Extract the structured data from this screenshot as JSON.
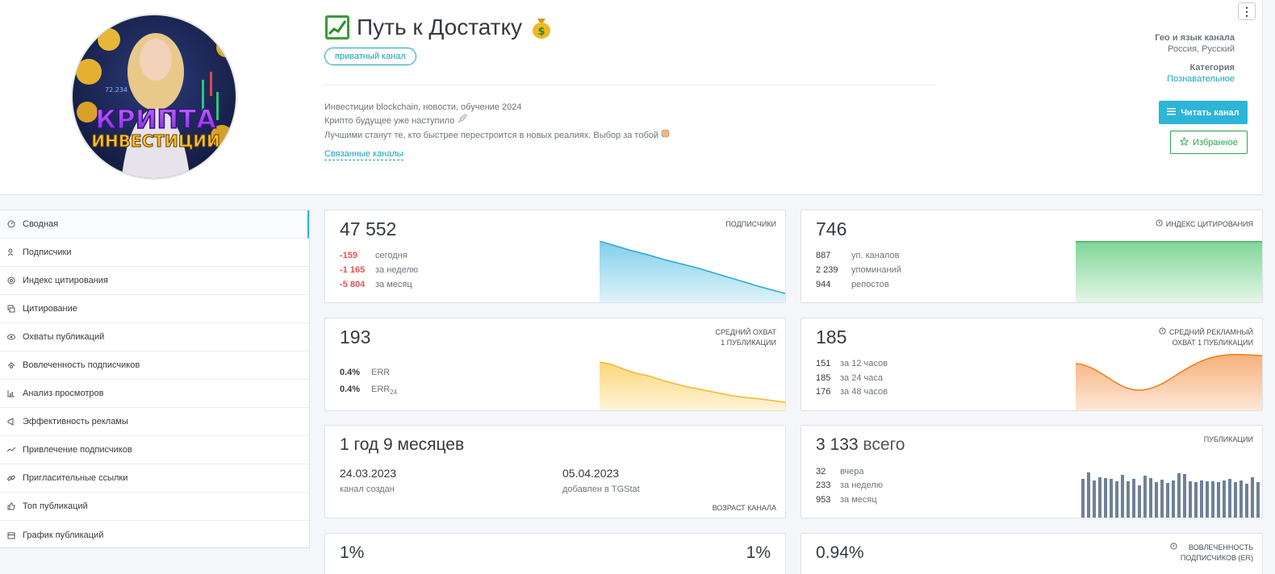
{
  "header": {
    "title": "Путь к Достатку",
    "badge": "приватный канал",
    "avatar_text_top": "КРИПТА",
    "avatar_text_bottom": "ИНВЕСТИЦИИ",
    "avatar_number": "72.234",
    "description": [
      "Инвестиции blockchain, новости, обучение 2024",
      "Крипто будущее уже наступило",
      "Лучшими станут те, кто быстрее перестроится в новых реалиях. Выбор за тобой"
    ],
    "related_link": "Связанные каналы",
    "geo_label": "Гео и язык канала",
    "geo_value": "Россия, Русский",
    "category_label": "Категория",
    "category_value": "Познавательное",
    "read_button": "Читать канал",
    "fav_button": "Избранное",
    "menu_glyph": "⋮"
  },
  "sidebar": {
    "items": [
      {
        "label": "Сводная",
        "icon": "dashboard-icon"
      },
      {
        "label": "Подписчики",
        "icon": "users-icon"
      },
      {
        "label": "Индекс цитирования",
        "icon": "at-icon"
      },
      {
        "label": "Цитирование",
        "icon": "quote-icon"
      },
      {
        "label": "Охваты публикаций",
        "icon": "eye-icon"
      },
      {
        "label": "Вовлеченность подписчиков",
        "icon": "engagement-icon"
      },
      {
        "label": "Анализ просмотров",
        "icon": "bar-chart-icon"
      },
      {
        "label": "Эффективность рекламы",
        "icon": "megaphone-icon"
      },
      {
        "label": "Привлечение подписчиков",
        "icon": "trend-icon"
      },
      {
        "label": "Пригласительные ссылки",
        "icon": "link-icon"
      },
      {
        "label": "Топ публикаций",
        "icon": "thumbs-up-icon"
      },
      {
        "label": "График публикаций",
        "icon": "calendar-icon"
      }
    ]
  },
  "cards": {
    "subscribers": {
      "value": "47 552",
      "label": "ПОДПИСЧИКИ",
      "rows": [
        {
          "n": "-159",
          "t": "сегодня"
        },
        {
          "n": "-1 165",
          "t": "за неделю"
        },
        {
          "n": "-5 804",
          "t": "за месяц"
        }
      ]
    },
    "citation": {
      "value": "746",
      "label": "ИНДЕКС ЦИТИРОВАНИЯ",
      "rows": [
        {
          "n": "887",
          "t": "уп. каналов"
        },
        {
          "n": "2 239",
          "t": "упоминаний"
        },
        {
          "n": "944",
          "t": "репостов"
        }
      ]
    },
    "reach": {
      "value": "193",
      "label_line1": "СРЕДНИЙ ОХВАТ",
      "label_line2": "1 ПУБЛИКАЦИИ",
      "rows": [
        {
          "n": "0.4%",
          "t": "ERR",
          "sub": ""
        },
        {
          "n": "0.4%",
          "t": "ERR",
          "sub": "24"
        }
      ]
    },
    "ad_reach": {
      "value": "185",
      "label_line1": "СРЕДНИЙ РЕКЛАМНЫЙ",
      "label_line2": "ОХВАТ 1 ПУБЛИКАЦИИ",
      "rows": [
        {
          "n": "151",
          "t": "за 12 часов"
        },
        {
          "n": "185",
          "t": "за 24 часа"
        },
        {
          "n": "176",
          "t": "за 48 часов"
        }
      ]
    },
    "age": {
      "value": "1 год 9 месяцев",
      "created_date": "24.03.2023",
      "created_label": "канал создан",
      "added_date": "05.04.2023",
      "added_label": "добавлен в TGStat",
      "label": "ВОЗРАСТ КАНАЛА"
    },
    "posts": {
      "value": "3 133",
      "suffix": "всего",
      "label": "ПУБЛИКАЦИИ",
      "rows": [
        {
          "n": "32",
          "t": "вчера"
        },
        {
          "n": "233",
          "t": "за неделю"
        },
        {
          "n": "953",
          "t": "за месяц"
        }
      ]
    },
    "er_left": {
      "value": "1%",
      "value_right": "1%"
    },
    "er_right": {
      "value": "0.94%",
      "label_line1": "ВОВЛЕЧЕННОСТЬ",
      "label_line2": "ПОДПИСЧИКОВ (ER)"
    }
  },
  "colors": {
    "accent": "#2cb5d6",
    "negative": "#e55353",
    "favorite": "#28a745",
    "subscribers_chart": "#2aa9d3",
    "citation_chart": "#3cb85c",
    "reach_chart": "#f5b82e",
    "ad_reach_chart": "#f07d1a",
    "posts_bars": "#6e8197"
  }
}
